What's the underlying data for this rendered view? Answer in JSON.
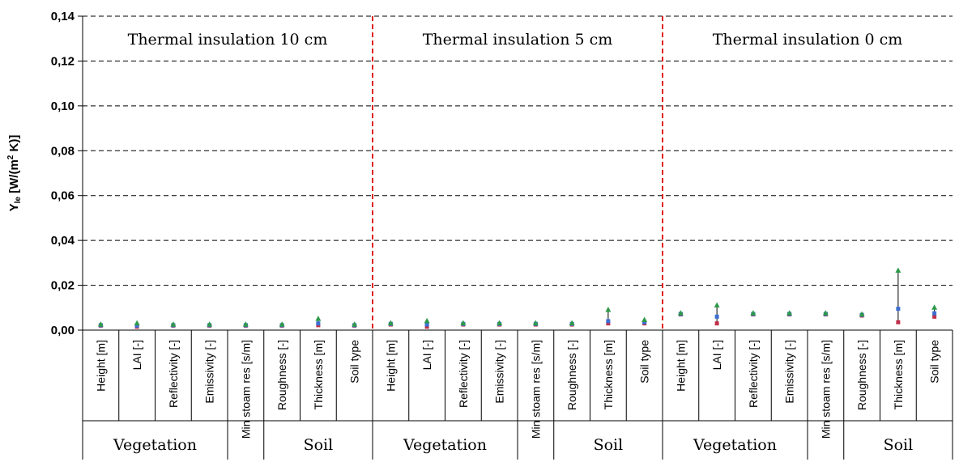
{
  "chart_data": {
    "type": "scatter",
    "ylabel_main": "Y",
    "ylabel_sub": "le",
    "ylabel_rest": " [W/(m",
    "ylabel_sup": "2",
    "ylabel_end": " K)]",
    "ylim": [
      0,
      0.14
    ],
    "yticks": [
      "0,00",
      "0,02",
      "0,04",
      "0,06",
      "0,08",
      "0,10",
      "0,12",
      "0,14"
    ],
    "grid": "horizontal dashed",
    "categories": [
      "Height [m]",
      "LAI [-]",
      "Reflectivity [-]",
      "Emissivity [-]",
      "Min stoam res [s/m]",
      "Roughness [-]",
      "Thickness [m]",
      "Soil type"
    ],
    "section_titles": [
      "Thermal insulation 10 cm",
      "Thermal insulation 5 cm",
      "Thermal insulation 0 cm"
    ],
    "group_labels": {
      "vegetation": "Vegetation",
      "soil": "Soil"
    },
    "colors": {
      "min": "#c0304a",
      "mid": "#3b6fd4",
      "max": "#2e9a4a",
      "divider": "#e02020",
      "grid": "#000000"
    },
    "series": [
      {
        "values": [
          0.002,
          0.0015,
          0.002,
          0.002,
          0.002,
          0.002,
          0.0022,
          0.002,
          0.0025,
          0.0015,
          0.0025,
          0.0025,
          0.0025,
          0.0025,
          0.003,
          0.003,
          0.007,
          0.003,
          0.007,
          0.007,
          0.007,
          0.0065,
          0.0035,
          0.006
        ]
      },
      {
        "values": [
          0.0022,
          0.002,
          0.0022,
          0.0022,
          0.0022,
          0.0022,
          0.003,
          0.0022,
          0.0028,
          0.0025,
          0.0028,
          0.0028,
          0.0028,
          0.0028,
          0.004,
          0.0035,
          0.0072,
          0.006,
          0.0072,
          0.0072,
          0.0072,
          0.0068,
          0.0095,
          0.0075
        ]
      },
      {
        "values": [
          0.0025,
          0.003,
          0.0025,
          0.0025,
          0.0025,
          0.0025,
          0.005,
          0.0025,
          0.003,
          0.004,
          0.003,
          0.003,
          0.003,
          0.003,
          0.009,
          0.0045,
          0.0075,
          0.011,
          0.0075,
          0.0075,
          0.0075,
          0.007,
          0.0265,
          0.01
        ]
      }
    ]
  }
}
